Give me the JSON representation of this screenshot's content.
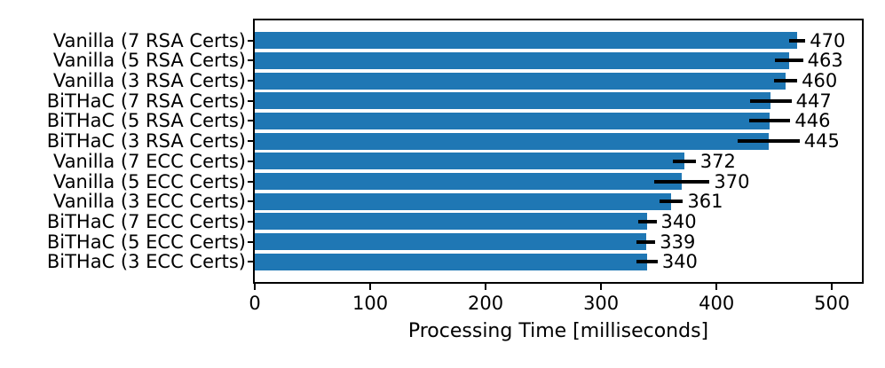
{
  "chart_data": {
    "type": "bar",
    "orientation": "horizontal",
    "title": "",
    "xlabel": "Processing Time [milliseconds]",
    "ylabel": "",
    "categories": [
      "Vanilla (7 RSA Certs)",
      "Vanilla (5 RSA Certs)",
      "Vanilla (3 RSA Certs)",
      "BiTHaC (7 RSA Certs)",
      "BiTHaC (5 RSA Certs)",
      "BiTHaC (3 RSA Certs)",
      "Vanilla (7 ECC Certs)",
      "Vanilla (5 ECC Certs)",
      "Vanilla (3 ECC Certs)",
      "BiTHaC (7 ECC Certs)",
      "BiTHaC (5 ECC Certs)",
      "BiTHaC (3 ECC Certs)"
    ],
    "values": [
      470,
      463,
      460,
      447,
      446,
      445,
      372,
      370,
      361,
      340,
      339,
      340
    ],
    "error_bars": [
      7,
      12,
      10,
      18,
      18,
      27,
      10,
      24,
      10,
      8,
      8,
      9
    ],
    "value_labels_visible": true,
    "xticks": [
      0,
      100,
      200,
      300,
      400,
      500
    ],
    "xlim": [
      0,
      526
    ],
    "grid": false,
    "legend": null,
    "bar_color": "#1f77b4",
    "error_bar_color": "#000000",
    "text_color": "#000000",
    "frame_color": "#000000",
    "background_color": "#ffffff"
  }
}
